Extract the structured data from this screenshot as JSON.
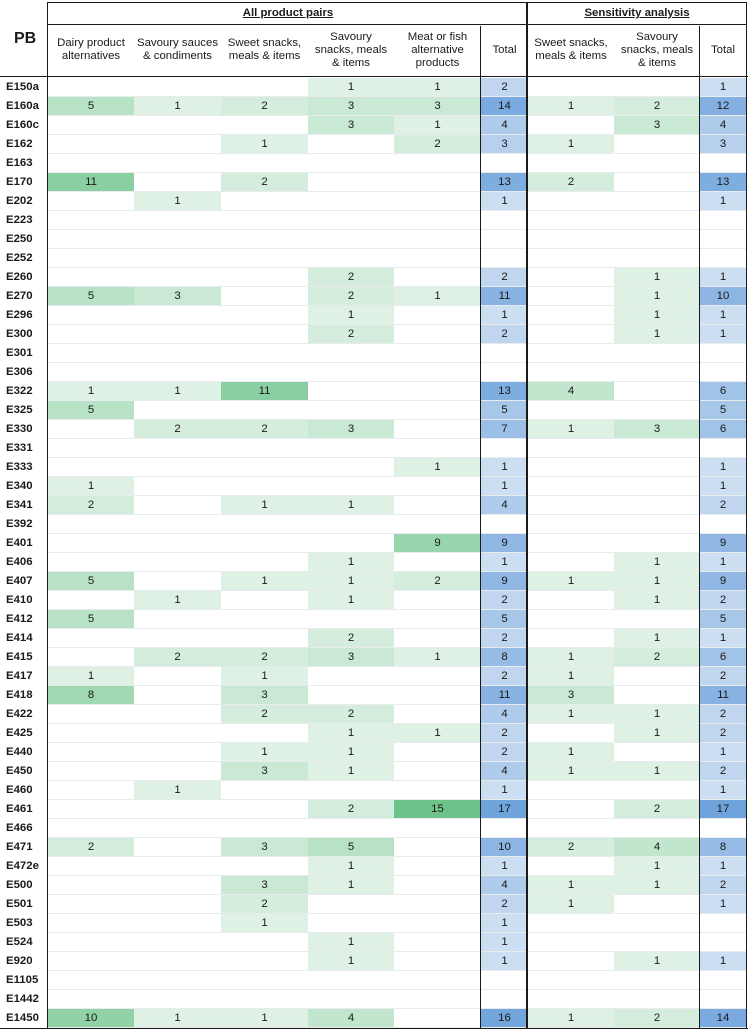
{
  "pb_header": "PB",
  "group_all": "All product pairs",
  "group_sens": "Sensitivity analysis",
  "columns": [
    "Dairy product alternatives",
    "Savoury sauces & condiments",
    "Sweet snacks, meals & items",
    "Savoury snacks, meals & items",
    "Meat or fish alternative products",
    "Total",
    "Sweet snacks, meals & items",
    "Savoury snacks, meals & items",
    "Total"
  ],
  "rows": [
    {
      "pb": "E150a",
      "v": [
        "",
        "",
        "",
        "1",
        "1",
        "2",
        "",
        "",
        "1"
      ]
    },
    {
      "pb": "E160a",
      "v": [
        "5",
        "1",
        "2",
        "3",
        "3",
        "14",
        "1",
        "2",
        "12"
      ]
    },
    {
      "pb": "E160c",
      "v": [
        "",
        "",
        "",
        "3",
        "1",
        "4",
        "",
        "3",
        "4"
      ]
    },
    {
      "pb": "E162",
      "v": [
        "",
        "",
        "1",
        "",
        "2",
        "3",
        "1",
        "",
        "3"
      ]
    },
    {
      "pb": "E163",
      "v": [
        "",
        "",
        "",
        "",
        "",
        "",
        "",
        "",
        ""
      ]
    },
    {
      "pb": "E170",
      "v": [
        "11",
        "",
        "2",
        "",
        "",
        "13",
        "2",
        "",
        "13"
      ]
    },
    {
      "pb": "E202",
      "v": [
        "",
        "1",
        "",
        "",
        "",
        "1",
        "",
        "",
        "1"
      ]
    },
    {
      "pb": "E223",
      "v": [
        "",
        "",
        "",
        "",
        "",
        "",
        "",
        "",
        ""
      ]
    },
    {
      "pb": "E250",
      "v": [
        "",
        "",
        "",
        "",
        "",
        "",
        "",
        "",
        ""
      ]
    },
    {
      "pb": "E252",
      "v": [
        "",
        "",
        "",
        "",
        "",
        "",
        "",
        "",
        ""
      ]
    },
    {
      "pb": "E260",
      "v": [
        "",
        "",
        "",
        "2",
        "",
        "2",
        "",
        "1",
        "1"
      ]
    },
    {
      "pb": "E270",
      "v": [
        "5",
        "3",
        "",
        "2",
        "1",
        "11",
        "",
        "1",
        "10"
      ]
    },
    {
      "pb": "E296",
      "v": [
        "",
        "",
        "",
        "1",
        "",
        "1",
        "",
        "1",
        "1"
      ]
    },
    {
      "pb": "E300",
      "v": [
        "",
        "",
        "",
        "2",
        "",
        "2",
        "",
        "1",
        "1"
      ]
    },
    {
      "pb": "E301",
      "v": [
        "",
        "",
        "",
        "",
        "",
        "",
        "",
        "",
        ""
      ]
    },
    {
      "pb": "E306",
      "v": [
        "",
        "",
        "",
        "",
        "",
        "",
        "",
        "",
        ""
      ]
    },
    {
      "pb": "E322",
      "v": [
        "1",
        "1",
        "11",
        "",
        "",
        "13",
        "4",
        "",
        "6"
      ]
    },
    {
      "pb": "E325",
      "v": [
        "5",
        "",
        "",
        "",
        "",
        "5",
        "",
        "",
        "5"
      ]
    },
    {
      "pb": "E330",
      "v": [
        "",
        "2",
        "2",
        "3",
        "",
        "7",
        "1",
        "3",
        "6"
      ]
    },
    {
      "pb": "E331",
      "v": [
        "",
        "",
        "",
        "",
        "",
        "",
        "",
        "",
        ""
      ]
    },
    {
      "pb": "E333",
      "v": [
        "",
        "",
        "",
        "",
        "1",
        "1",
        "",
        "",
        "1"
      ]
    },
    {
      "pb": "E340",
      "v": [
        "1",
        "",
        "",
        "",
        "",
        "1",
        "",
        "",
        "1"
      ]
    },
    {
      "pb": "E341",
      "v": [
        "2",
        "",
        "1",
        "1",
        "",
        "4",
        "",
        "",
        "2"
      ]
    },
    {
      "pb": "E392",
      "v": [
        "",
        "",
        "",
        "",
        "",
        "",
        "",
        "",
        ""
      ]
    },
    {
      "pb": "E401",
      "v": [
        "",
        "",
        "",
        "",
        "9",
        "9",
        "",
        "",
        "9"
      ]
    },
    {
      "pb": "E406",
      "v": [
        "",
        "",
        "",
        "1",
        "",
        "1",
        "",
        "1",
        "1"
      ]
    },
    {
      "pb": "E407",
      "v": [
        "5",
        "",
        "1",
        "1",
        "2",
        "9",
        "1",
        "1",
        "9"
      ]
    },
    {
      "pb": "E410",
      "v": [
        "",
        "1",
        "",
        "1",
        "",
        "2",
        "",
        "1",
        "2"
      ]
    },
    {
      "pb": "E412",
      "v": [
        "5",
        "",
        "",
        "",
        "",
        "5",
        "",
        "",
        "5"
      ]
    },
    {
      "pb": "E414",
      "v": [
        "",
        "",
        "",
        "2",
        "",
        "2",
        "",
        "1",
        "1"
      ]
    },
    {
      "pb": "E415",
      "v": [
        "",
        "2",
        "2",
        "3",
        "1",
        "8",
        "1",
        "2",
        "6"
      ]
    },
    {
      "pb": "E417",
      "v": [
        "1",
        "",
        "1",
        "",
        "",
        "2",
        "1",
        "",
        "2"
      ]
    },
    {
      "pb": "E418",
      "v": [
        "8",
        "",
        "3",
        "",
        "",
        "11",
        "3",
        "",
        "11"
      ]
    },
    {
      "pb": "E422",
      "v": [
        "",
        "",
        "2",
        "2",
        "",
        "4",
        "1",
        "1",
        "2"
      ]
    },
    {
      "pb": "E425",
      "v": [
        "",
        "",
        "",
        "1",
        "1",
        "2",
        "",
        "1",
        "2"
      ]
    },
    {
      "pb": "E440",
      "v": [
        "",
        "",
        "1",
        "1",
        "",
        "2",
        "1",
        "",
        "1"
      ]
    },
    {
      "pb": "E450",
      "v": [
        "",
        "",
        "3",
        "1",
        "",
        "4",
        "1",
        "1",
        "2"
      ]
    },
    {
      "pb": "E460",
      "v": [
        "",
        "1",
        "",
        "",
        "",
        "1",
        "",
        "",
        "1"
      ]
    },
    {
      "pb": "E461",
      "v": [
        "",
        "",
        "",
        "2",
        "15",
        "17",
        "",
        "2",
        "17"
      ]
    },
    {
      "pb": "E466",
      "v": [
        "",
        "",
        "",
        "",
        "",
        "",
        "",
        "",
        ""
      ]
    },
    {
      "pb": "E471",
      "v": [
        "2",
        "",
        "3",
        "5",
        "",
        "10",
        "2",
        "4",
        "8"
      ]
    },
    {
      "pb": "E472e",
      "v": [
        "",
        "",
        "",
        "1",
        "",
        "1",
        "",
        "1",
        "1"
      ]
    },
    {
      "pb": "E500",
      "v": [
        "",
        "",
        "3",
        "1",
        "",
        "4",
        "1",
        "1",
        "2"
      ]
    },
    {
      "pb": "E501",
      "v": [
        "",
        "",
        "2",
        "",
        "",
        "2",
        "1",
        "",
        "1"
      ]
    },
    {
      "pb": "E503",
      "v": [
        "",
        "",
        "1",
        "",
        "",
        "1",
        "",
        "",
        ""
      ]
    },
    {
      "pb": "E524",
      "v": [
        "",
        "",
        "",
        "1",
        "",
        "1",
        "",
        "",
        ""
      ]
    },
    {
      "pb": "E920",
      "v": [
        "",
        "",
        "",
        "1",
        "",
        "1",
        "",
        "1",
        "1"
      ]
    },
    {
      "pb": "E1105",
      "v": [
        "",
        "",
        "",
        "",
        "",
        "",
        "",
        "",
        ""
      ]
    },
    {
      "pb": "E1442",
      "v": [
        "",
        "",
        "",
        "",
        "",
        "",
        "",
        "",
        ""
      ]
    },
    {
      "pb": "E1450",
      "v": [
        "10",
        "1",
        "1",
        "4",
        "",
        "16",
        "1",
        "2",
        "14"
      ]
    }
  ],
  "colors": {
    "green_max": "#6cc48a",
    "blue_max": "#6fa3dc",
    "border": "#1a1a1a"
  }
}
